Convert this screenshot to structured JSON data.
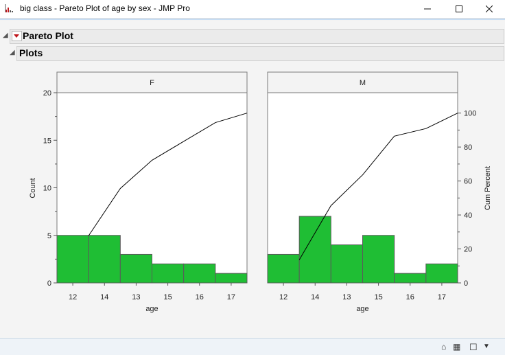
{
  "window": {
    "title": "big class - Pareto Plot of age by sex - JMP Pro"
  },
  "report": {
    "outline_title": "Pareto Plot",
    "sub_outline_title": "Plots"
  },
  "chart_data": [
    {
      "type": "bar",
      "panel": "F",
      "categories": [
        "12",
        "14",
        "13",
        "15",
        "16",
        "17"
      ],
      "values": [
        5,
        5,
        3,
        2,
        2,
        1
      ],
      "cum_percent": [
        27.8,
        55.6,
        72.2,
        83.3,
        94.4,
        100
      ],
      "xlabel": "age",
      "ylabel": "Count",
      "ylim": [
        0,
        20
      ]
    },
    {
      "type": "bar",
      "panel": "M",
      "categories": [
        "12",
        "14",
        "13",
        "15",
        "16",
        "17"
      ],
      "values": [
        3,
        7,
        4,
        5,
        1,
        2
      ],
      "cum_percent": [
        13.6,
        45.5,
        63.6,
        86.4,
        90.9,
        100
      ],
      "xlabel": "age",
      "ylabel": "Cum Percent",
      "ylim": [
        0,
        110
      ]
    }
  ],
  "axes": {
    "left_ticks": [
      "0",
      "5",
      "10",
      "15",
      "20"
    ],
    "right_ticks": [
      "0",
      "20",
      "40",
      "60",
      "80",
      "100"
    ],
    "left_label": "Count",
    "right_label": "Cum Percent",
    "x_label": "age"
  },
  "colors": {
    "bar_fill": "#1fbe34",
    "bar_stroke": "#5a5a5a",
    "line": "#000000",
    "accent": "#c0161c"
  },
  "statusbar": {
    "icons": [
      "home-icon",
      "table-icon",
      "window-icon",
      "dropdown-icon"
    ]
  }
}
